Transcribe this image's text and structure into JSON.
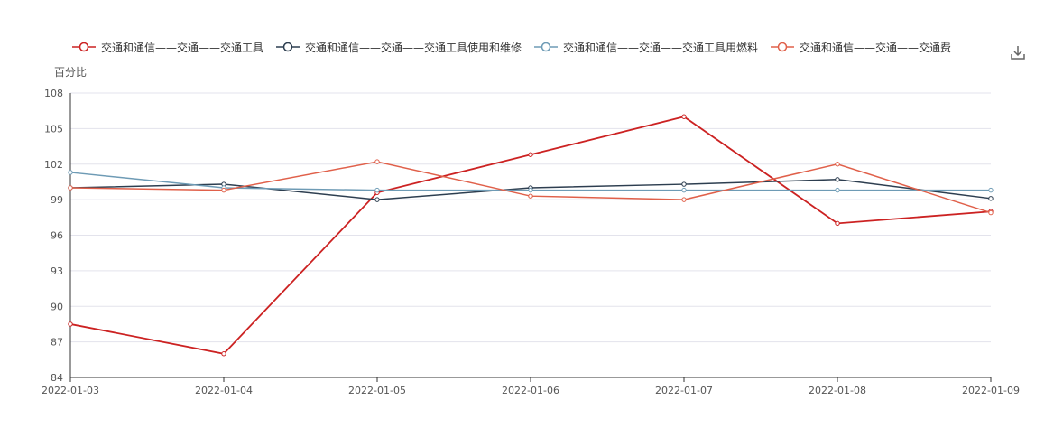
{
  "chart_data": {
    "type": "line",
    "title": "",
    "ylabel": "百分比",
    "xlabel": "",
    "x": [
      "2022-01-03",
      "2022-01-04",
      "2022-01-05",
      "2022-01-06",
      "2022-01-07",
      "2022-01-08",
      "2022-01-09"
    ],
    "y_ticks": [
      "84",
      "87",
      "90",
      "93",
      "96",
      "99",
      "102",
      "105",
      "108"
    ],
    "ylim": [
      84,
      108
    ],
    "grid": true,
    "legend_position": "top",
    "series": [
      {
        "name": "交通和通信——交通——交通工具",
        "color": "#cc2222",
        "values": [
          88.5,
          86.0,
          99.6,
          102.8,
          106.0,
          97.0,
          98.0
        ]
      },
      {
        "name": "交通和通信——交通——交通工具使用和维修",
        "color": "#2d3e50",
        "values": [
          100.0,
          100.3,
          99.0,
          100.0,
          100.3,
          100.7,
          99.1
        ]
      },
      {
        "name": "交通和通信——交通——交通工具用燃料",
        "color": "#6e9bb5",
        "values": [
          101.3,
          100.0,
          99.8,
          99.8,
          99.8,
          99.8,
          99.8
        ]
      },
      {
        "name": "交通和通信——交通——交通费",
        "color": "#e0604a",
        "values": [
          100.0,
          99.8,
          102.2,
          99.3,
          99.0,
          102.0,
          97.9
        ]
      }
    ]
  },
  "toolbar": {
    "download_icon": "download-icon"
  }
}
